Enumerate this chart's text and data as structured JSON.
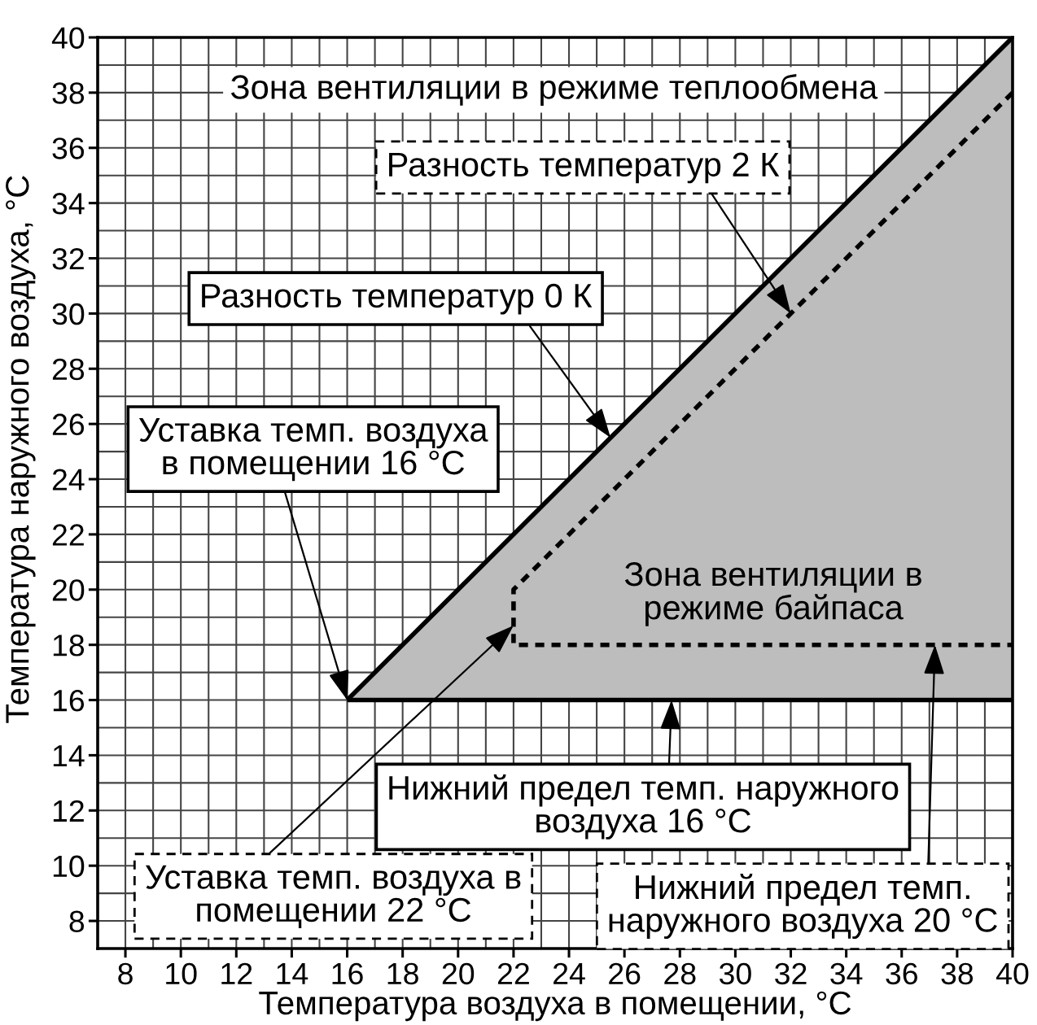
{
  "chart_data": {
    "type": "line",
    "xlabel": "Температура воздуха в помещении, °C",
    "ylabel": "Температура наружного воздуха, °C",
    "xlim": [
      7,
      40
    ],
    "ylim": [
      7,
      40
    ],
    "xticks": [
      8,
      {
        "value": 9,
        "label": null
      },
      10,
      {
        "value": 11,
        "label": null
      },
      12,
      {
        "value": 13,
        "label": null
      },
      14,
      {
        "value": 15,
        "label": null
      },
      16,
      {
        "value": 17,
        "label": null
      },
      18,
      {
        "value": 19,
        "label": null
      },
      20,
      {
        "value": 21,
        "label": null
      },
      22,
      {
        "value": 23,
        "label": null
      },
      24,
      {
        "value": 25,
        "label": null
      },
      26,
      {
        "value": 27,
        "label": null
      },
      28,
      {
        "value": 29,
        "label": null
      },
      30,
      {
        "value": 31,
        "label": null
      },
      32,
      {
        "value": 33,
        "label": null
      },
      34,
      {
        "value": 35,
        "label": null
      },
      36,
      {
        "value": 37,
        "label": null
      },
      38,
      {
        "value": 39,
        "label": null
      },
      40
    ],
    "yticks": [
      8,
      {
        "value": 9,
        "label": null
      },
      10,
      {
        "value": 11,
        "label": null
      },
      12,
      {
        "value": 13,
        "label": null
      },
      14,
      {
        "value": 15,
        "label": null
      },
      16,
      {
        "value": 17,
        "label": null
      },
      18,
      {
        "value": 19,
        "label": null
      },
      20,
      {
        "value": 21,
        "label": null
      },
      22,
      {
        "value": 23,
        "label": null
      },
      24,
      {
        "value": 25,
        "label": null
      },
      26,
      {
        "value": 27,
        "label": null
      },
      28,
      {
        "value": 29,
        "label": null
      },
      30,
      {
        "value": 31,
        "label": null
      },
      32,
      {
        "value": 33,
        "label": null
      },
      34,
      {
        "value": 35,
        "label": null
      },
      36,
      {
        "value": 37,
        "label": null
      },
      38,
      {
        "value": 39,
        "label": null
      },
      40
    ],
    "grid": true,
    "series": [
      {
        "x": [
          16,
          40
        ],
        "values": [
          16,
          40
        ],
        "lower": [
          16,
          16
        ],
        "upper": [
          16,
          40
        ],
        "color": "#000000",
        "line_style": "solid"
      },
      {
        "x": [
          16,
          40
        ],
        "values": [
          16,
          16
        ],
        "color": "#000000",
        "line_style": "solid"
      },
      {
        "x": [
          40,
          22,
          22,
          40
        ],
        "values": [
          38,
          20,
          18,
          18
        ],
        "color": "#000000",
        "line_style": "dashed"
      }
    ],
    "annotations": [
      "Зона вентиляции в режиме теплообмена",
      {
        "text": "Разность температур 2 К",
        "x": 32,
        "y": 30
      },
      {
        "text": "Разность температур 0 К",
        "x": 25.5,
        "y": 25.5
      },
      {
        "text": "Уставка темп. воздуха\nв помещении 16 °C",
        "x": 16,
        "y": 16
      },
      "Зона вентиляции в\nрежиме байпаса",
      {
        "text": "Нижний предел темп. наружного\nвоздуха 16 °C",
        "x": 27.7,
        "y": 16
      },
      {
        "text": "Уставка темп. воздуха в\nпомещении 22 °C",
        "x": 22,
        "y": 18.7
      },
      {
        "text": "Нижний предел темп.\nнаружного воздуха 20 °C",
        "x": 37.2,
        "y": 18
      }
    ]
  }
}
